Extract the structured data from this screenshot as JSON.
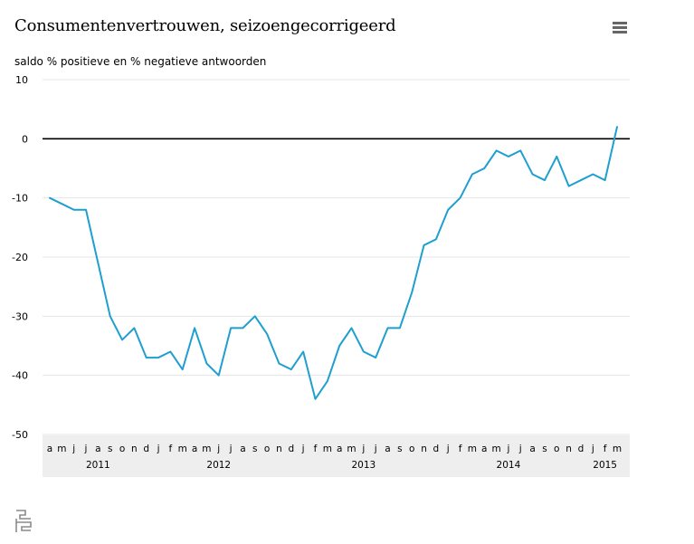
{
  "header": {
    "title": "Consumentenvertrouwen, seizoengecorrigeerd",
    "menu_icon": "hamburger-menu-icon"
  },
  "footer": {
    "logo_icon": "cbs-logo-icon"
  },
  "colors": {
    "line": "#1f9fd0",
    "zero_line": "#000000",
    "grid": "#e6e6e6",
    "band": "#eeeeee",
    "text": "#000000"
  },
  "chart_data": {
    "type": "line",
    "title": "Consumentenvertrouwen, seizoengecorrigeerd",
    "ylabel": "saldo % positieve en % negatieve antwoorden",
    "xlabel": "",
    "ylim": [
      -50,
      10
    ],
    "yticks": [
      10,
      0,
      -10,
      -20,
      -30,
      -40,
      -50
    ],
    "grid": true,
    "month_labels": [
      "a",
      "m",
      "j",
      "j",
      "a",
      "s",
      "o",
      "n",
      "d",
      "j",
      "f",
      "m",
      "a",
      "m",
      "j",
      "j",
      "a",
      "s",
      "o",
      "n",
      "d",
      "j",
      "f",
      "m",
      "a",
      "m",
      "j",
      "j",
      "a",
      "s",
      "o",
      "n",
      "d",
      "j",
      "f",
      "m",
      "a",
      "m",
      "j",
      "j",
      "a",
      "s",
      "o",
      "n",
      "d",
      "j",
      "f",
      "m"
    ],
    "year_labels": [
      {
        "label": "2011",
        "month_index": 4
      },
      {
        "label": "2012",
        "month_index": 14
      },
      {
        "label": "2013",
        "month_index": 26
      },
      {
        "label": "2014",
        "month_index": 38
      },
      {
        "label": "2015",
        "month_index": 46
      }
    ],
    "series": [
      {
        "values": [
          -10,
          -11,
          -12,
          -12,
          -21,
          -30,
          -34,
          -32,
          -37,
          -37,
          -36,
          -39,
          -32,
          -38,
          -40,
          -32,
          -32,
          -30,
          -33,
          -38,
          -39,
          -36,
          -44,
          -41,
          -35,
          -32,
          -36,
          -37,
          -32,
          -32,
          -26,
          -18,
          -17,
          -12,
          -10,
          -6,
          -5,
          -2,
          -3,
          -2,
          -6,
          -7,
          -3,
          -8,
          -7,
          -6,
          -7,
          2
        ]
      }
    ]
  }
}
